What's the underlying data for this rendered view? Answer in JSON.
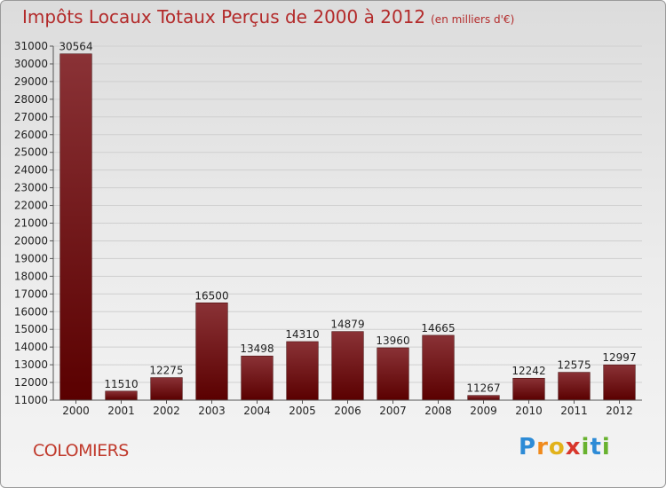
{
  "header": {
    "title": "Impôts Locaux Totaux Perçus de 2000 à 2012",
    "unit": "(en milliers d'€)"
  },
  "footer": {
    "city": "COLOMIERS"
  },
  "logo": {
    "letters": [
      {
        "ch": "P",
        "color": "#2d8bd6"
      },
      {
        "ch": "r",
        "color": "#f08a1c"
      },
      {
        "ch": "o",
        "color": "#e2b21b"
      },
      {
        "ch": "x",
        "color": "#d8362b"
      },
      {
        "ch": "i",
        "color": "#68b22f"
      },
      {
        "ch": "t",
        "color": "#2d8bd6"
      },
      {
        "ch": "i",
        "color": "#68b22f"
      }
    ]
  },
  "colors": {
    "bar_top": "#8a3236",
    "bar_bottom": "#5a0000",
    "grid": "#cfcfcf"
  },
  "chart_data": {
    "type": "bar",
    "categories": [
      "2000",
      "2001",
      "2002",
      "2003",
      "2004",
      "2005",
      "2006",
      "2007",
      "2008",
      "2009",
      "2010",
      "2011",
      "2012"
    ],
    "values": [
      30564,
      11510,
      12275,
      16500,
      13498,
      14310,
      14879,
      13960,
      14665,
      11267,
      12242,
      12575,
      12997
    ],
    "ylim": [
      11000,
      31000
    ],
    "yticks": [
      11000,
      12000,
      13000,
      14000,
      15000,
      16000,
      17000,
      18000,
      19000,
      20000,
      21000,
      22000,
      23000,
      24000,
      25000,
      26000,
      27000,
      28000,
      29000,
      30000,
      31000
    ],
    "grid": true,
    "title": "Impôts Locaux Totaux Perçus de 2000 à 2012",
    "xlabel": "",
    "ylabel": ""
  }
}
